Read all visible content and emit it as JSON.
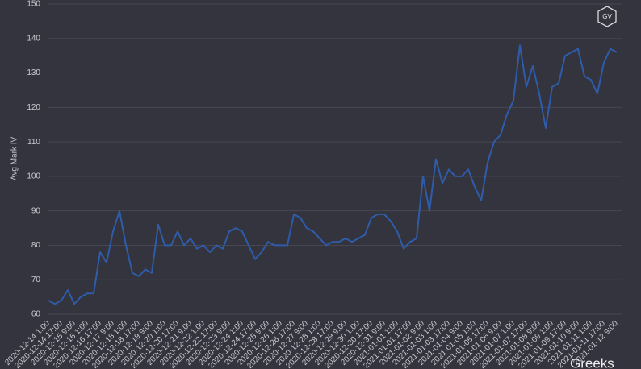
{
  "chart_data": {
    "type": "line",
    "y_label": "Avg Mark IV",
    "watermark_logo": "GV",
    "watermark_text": "Greeks",
    "categories": [
      "2020-12-14 1:00",
      null,
      "2020-12-14 17:00",
      null,
      "2020-12-15 9:00",
      null,
      "2020-12-16 1:00",
      null,
      "2020-12-16 17:00",
      null,
      "2020-12-17 9:00",
      null,
      "2020-12-18 1:00",
      null,
      "2020-12-18 17:00",
      null,
      "2020-12-19 9:00",
      null,
      "2020-12-20 1:00",
      null,
      "2020-12-20 17:00",
      null,
      "2020-12-21 9:00",
      null,
      "2020-12-22 1:00",
      null,
      "2020-12-22 17:00",
      null,
      "2020-12-23 9:00",
      null,
      "2020-12-24 1:00",
      null,
      "2020-12-24 17:00",
      null,
      "2020-12-25 9:00",
      null,
      "2020-12-26 1:00",
      null,
      "2020-12-26 17:00",
      null,
      "2020-12-27 9:00",
      null,
      "2020-12-28 1:00",
      null,
      "2020-12-28 17:00",
      null,
      "2020-12-29 9:00",
      null,
      "2020-12-30 1:00",
      null,
      "2020-12-30 17:00",
      null,
      "2020-12-31 9:00",
      null,
      "2021-01-01 1:00",
      null,
      "2021-01-01 17:00",
      null,
      "2021-01-02 9:00",
      null,
      "2021-01-03 1:00",
      null,
      "2021-01-03 17:00",
      null,
      "2021-01-04 9:00",
      null,
      "2021-01-05 1:00",
      null,
      "2021-01-05 17:00",
      null,
      "2021-01-06 9:00",
      null,
      "2021-01-07 1:00",
      null,
      "2021-01-07 17:00",
      null,
      "2021-01-08 9:00",
      null,
      "2021-01-09 1:00",
      null,
      "2021-01-09 17:00",
      null,
      "2021-01-10 9:00",
      null,
      "2021-01-11 1:00",
      null,
      "2021-01-11 17:00",
      null,
      "2021-01-12 9:00"
    ],
    "series": [
      {
        "name": "Avg Mark IV",
        "color": "#2f5caa",
        "values": [
          64,
          63,
          64,
          67,
          63,
          65,
          66,
          66,
          78,
          75,
          84,
          90,
          80,
          72,
          71,
          73,
          72,
          86,
          80,
          80,
          84,
          80,
          82,
          79,
          80,
          78,
          80,
          79,
          84,
          85,
          84,
          80,
          76,
          78,
          81,
          80,
          80,
          80,
          89,
          88,
          85,
          84,
          82,
          80,
          81,
          81,
          82,
          81,
          82,
          83,
          88,
          89,
          89,
          87,
          84,
          79,
          81,
          82,
          100,
          90,
          105,
          98,
          102,
          100,
          100,
          102,
          97,
          93,
          104,
          110,
          112,
          118,
          122,
          138,
          126,
          132,
          124,
          114,
          126,
          127,
          135,
          136,
          137,
          129,
          128,
          124,
          133,
          137,
          136
        ]
      }
    ],
    "ylim": [
      60,
      150
    ],
    "yticks": [
      60,
      70,
      80,
      90,
      100,
      110,
      120,
      130,
      140,
      150
    ],
    "grid": true
  }
}
